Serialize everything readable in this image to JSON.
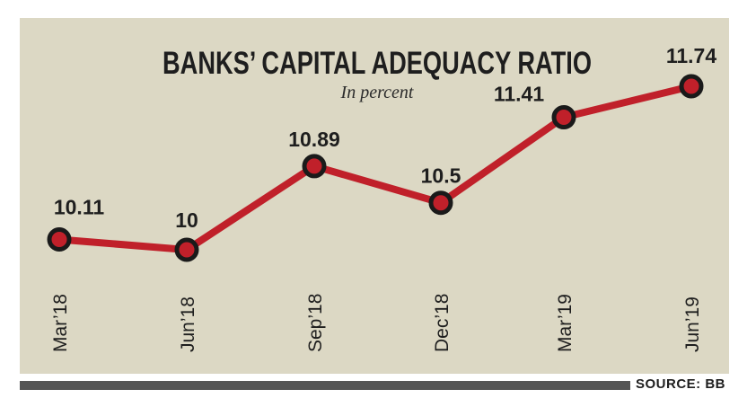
{
  "chart_data": {
    "type": "line",
    "title": "BANKS’ CAPITAL ADEQUACY RATIO",
    "subtitle": "In percent",
    "categories": [
      "Mar’18",
      "Jun’18",
      "Sep’18",
      "Dec’18",
      "Mar’19",
      "Jun’19"
    ],
    "values": [
      10.11,
      10,
      10.89,
      10.5,
      11.41,
      11.74
    ],
    "data_labels": [
      "10.11",
      "10",
      "10.89",
      "10.5",
      "11.41",
      "11.74"
    ],
    "colors": {
      "line": "#c0202a",
      "marker_fill": "#c0202a",
      "marker_stroke": "#1a1a1a",
      "background": "#dcd8c4"
    }
  },
  "footer": {
    "source": "SOURCE: BB"
  }
}
